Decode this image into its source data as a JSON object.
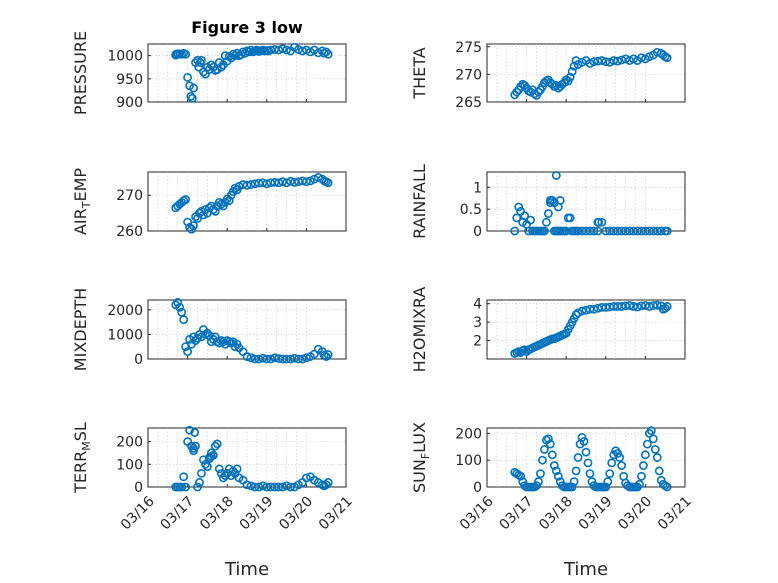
{
  "figure_title": "Figure 3 low",
  "chart_data": [
    {
      "type": "scatter",
      "title": "Figure 3 low",
      "ylabel": "PRESSURE",
      "xlabel": "",
      "xlim": [
        0,
        5
      ],
      "ylim": [
        900,
        1025
      ],
      "yticks": [
        900,
        950,
        1000
      ],
      "show_xticks": false,
      "x": [
        0.7,
        0.75,
        0.8,
        0.85,
        0.9,
        0.95,
        0.7,
        0.75,
        0.72,
        1.0,
        1.05,
        1.08,
        1.12,
        1.15,
        1.2,
        1.25,
        1.28,
        1.32,
        1.35,
        1.4,
        1.45,
        1.5,
        1.55,
        1.6,
        1.65,
        1.7,
        1.75,
        1.8,
        1.85,
        1.9,
        1.95,
        2.0,
        2.05,
        2.1,
        2.15,
        2.2,
        2.25,
        2.3,
        2.35,
        2.4,
        2.45,
        2.5,
        2.55,
        2.6,
        2.65,
        2.7,
        2.75,
        2.8,
        2.85,
        2.9,
        2.95,
        3.0,
        3.05,
        3.1,
        3.2,
        3.3,
        3.4,
        3.5,
        3.6,
        3.7,
        3.8,
        3.9,
        4.0,
        4.1,
        4.2,
        4.3,
        4.4,
        4.45,
        4.5,
        4.55
      ],
      "y": [
        1002,
        1003,
        1004,
        1003,
        1005,
        1003,
        1001,
        1004,
        1003,
        953,
        935,
        912,
        908,
        930,
        985,
        990,
        975,
        985,
        990,
        965,
        960,
        975,
        970,
        980,
        975,
        968,
        970,
        985,
        975,
        980,
        1000,
        988,
        998,
        995,
        1003,
        1000,
        1005,
        1000,
        1002,
        1008,
        1005,
        1010,
        1008,
        1012,
        1008,
        1010,
        1012,
        1009,
        1010,
        1012,
        1010,
        1011,
        1010,
        1012,
        1013,
        1012,
        1015,
        1012,
        1010,
        1018,
        1013,
        1010,
        1012,
        1008,
        1012,
        1006,
        1010,
        1005,
        1008,
        1003
      ]
    },
    {
      "type": "scatter",
      "title": "",
      "ylabel": "THETA",
      "xlabel": "",
      "xlim": [
        0,
        5
      ],
      "ylim": [
        265,
        275.5
      ],
      "yticks": [
        265,
        270,
        275
      ],
      "show_xticks": false,
      "x": [
        0.7,
        0.75,
        0.8,
        0.85,
        0.9,
        0.95,
        1.0,
        1.05,
        1.1,
        1.15,
        1.2,
        1.25,
        1.3,
        1.35,
        1.4,
        1.45,
        1.5,
        1.55,
        1.6,
        1.65,
        1.7,
        1.75,
        1.8,
        1.85,
        1.9,
        1.95,
        2.0,
        2.05,
        2.1,
        2.15,
        2.2,
        2.25,
        2.3,
        2.4,
        2.5,
        2.6,
        2.7,
        2.8,
        2.9,
        3.0,
        3.1,
        3.2,
        3.3,
        3.4,
        3.5,
        3.6,
        3.7,
        3.8,
        3.9,
        4.0,
        4.1,
        4.2,
        4.3,
        4.4,
        4.45,
        4.5,
        4.55
      ],
      "y": [
        266.3,
        266.8,
        267.2,
        267.8,
        268.2,
        268.0,
        267.5,
        267.0,
        266.8,
        267.2,
        266.5,
        266.2,
        266.8,
        267.2,
        267.8,
        268.5,
        268.8,
        269.0,
        268.5,
        268.2,
        267.8,
        268.0,
        267.5,
        267.8,
        268.2,
        268.5,
        269.0,
        268.8,
        269.5,
        270.5,
        271.5,
        272.5,
        271.8,
        272.2,
        272.5,
        272.0,
        272.3,
        272.4,
        272.5,
        272.3,
        272.2,
        272.5,
        272.4,
        272.6,
        272.8,
        272.5,
        272.8,
        272.5,
        273.0,
        272.8,
        273.2,
        273.5,
        274.0,
        273.8,
        273.5,
        273.2,
        273.0
      ]
    },
    {
      "type": "scatter",
      "title": "",
      "ylabel": "AIR_TEMP",
      "xlabel": "",
      "xlim": [
        0,
        5
      ],
      "ylim": [
        260,
        276.5
      ],
      "yticks": [
        260,
        270
      ],
      "show_xticks": false,
      "x": [
        0.7,
        0.75,
        0.8,
        0.85,
        0.9,
        0.95,
        1.0,
        1.05,
        1.1,
        1.15,
        1.2,
        1.25,
        1.3,
        1.35,
        1.4,
        1.45,
        1.5,
        1.55,
        1.6,
        1.65,
        1.7,
        1.75,
        1.8,
        1.85,
        1.9,
        1.95,
        2.0,
        2.05,
        2.1,
        2.15,
        2.2,
        2.25,
        2.3,
        2.4,
        2.5,
        2.6,
        2.7,
        2.8,
        2.9,
        3.0,
        3.1,
        3.2,
        3.3,
        3.4,
        3.5,
        3.6,
        3.7,
        3.8,
        3.9,
        4.0,
        4.1,
        4.2,
        4.3,
        4.4,
        4.45,
        4.5,
        4.55
      ],
      "y": [
        266.5,
        267.0,
        267.5,
        268.0,
        268.5,
        268.8,
        262.5,
        261.0,
        260.5,
        261.5,
        264.0,
        263.5,
        265.0,
        265.5,
        264.5,
        266.0,
        265.0,
        266.5,
        267.0,
        266.0,
        265.5,
        267.0,
        268.0,
        267.5,
        267.0,
        268.0,
        269.0,
        268.5,
        270.0,
        271.0,
        272.0,
        271.5,
        272.5,
        273.0,
        272.8,
        273.0,
        273.2,
        273.4,
        273.5,
        273.2,
        273.5,
        273.6,
        273.5,
        273.8,
        273.5,
        273.9,
        273.6,
        273.8,
        274.0,
        273.8,
        274.0,
        274.5,
        275.0,
        274.5,
        274.0,
        273.8,
        273.5
      ]
    },
    {
      "type": "scatter",
      "title": "",
      "ylabel": "RAINFALL",
      "xlabel": "",
      "xlim": [
        0,
        5
      ],
      "ylim": [
        0,
        1.35
      ],
      "yticks": [
        0,
        0.5,
        1
      ],
      "show_xticks": false,
      "x": [
        0.7,
        0.75,
        0.8,
        0.85,
        0.9,
        0.95,
        1.0,
        1.05,
        1.1,
        1.15,
        1.2,
        1.25,
        1.3,
        1.35,
        1.4,
        1.45,
        1.5,
        1.55,
        1.6,
        1.65,
        1.7,
        1.75,
        1.8,
        1.85,
        1.9,
        1.95,
        2.0,
        2.05,
        2.1,
        2.15,
        2.2,
        2.25,
        2.3,
        2.4,
        2.5,
        2.6,
        2.7,
        2.8,
        2.9,
        3.0,
        3.1,
        3.2,
        3.3,
        3.4,
        3.5,
        3.6,
        3.7,
        3.8,
        3.9,
        4.0,
        4.1,
        4.2,
        4.3,
        4.4,
        4.5,
        4.55,
        1.6,
        1.7,
        1.75,
        2.8,
        2.82,
        1.8,
        1.85
      ],
      "y": [
        0,
        0.3,
        0.55,
        0.45,
        0.2,
        0.35,
        0.15,
        0,
        0.25,
        0,
        0,
        0,
        0,
        0,
        0,
        0,
        0.2,
        0.4,
        0.7,
        0.7,
        0,
        0,
        0,
        0,
        0,
        0,
        0,
        0.3,
        0.3,
        0,
        0,
        0,
        0,
        0,
        0,
        0,
        0,
        0,
        0.2,
        0,
        0,
        0,
        0,
        0,
        0,
        0,
        0,
        0,
        0,
        0,
        0,
        0,
        0,
        0,
        0,
        0,
        0.65,
        0.65,
        1.27,
        0.2,
        0.2,
        0.55,
        0.7
      ]
    },
    {
      "type": "scatter",
      "title": "",
      "ylabel": "MIXDEPTH",
      "xlabel": "",
      "xlim": [
        0,
        5
      ],
      "ylim": [
        0,
        2400
      ],
      "yticks": [
        0,
        1000,
        2000
      ],
      "show_xticks": false,
      "x": [
        0.7,
        0.75,
        0.8,
        0.85,
        0.9,
        0.95,
        1.0,
        1.05,
        1.1,
        1.15,
        1.2,
        1.25,
        1.3,
        1.35,
        1.4,
        1.45,
        1.5,
        1.55,
        1.6,
        1.65,
        1.7,
        1.75,
        1.8,
        1.85,
        1.9,
        1.95,
        2.0,
        2.05,
        2.1,
        2.15,
        2.2,
        2.25,
        2.3,
        2.4,
        2.5,
        2.6,
        2.7,
        2.8,
        2.9,
        3.0,
        3.1,
        3.2,
        3.3,
        3.4,
        3.5,
        3.6,
        3.7,
        3.8,
        3.9,
        4.0,
        4.1,
        4.2,
        4.3,
        4.4,
        4.45,
        4.5,
        4.55
      ],
      "y": [
        2200,
        2300,
        2100,
        1900,
        1600,
        500,
        300,
        800,
        600,
        900,
        750,
        850,
        1000,
        900,
        1200,
        1000,
        1050,
        950,
        700,
        800,
        900,
        700,
        650,
        750,
        700,
        600,
        750,
        700,
        650,
        700,
        500,
        600,
        450,
        300,
        100,
        50,
        0,
        0,
        30,
        0,
        0,
        50,
        20,
        0,
        0,
        0,
        30,
        0,
        0,
        50,
        100,
        200,
        400,
        300,
        150,
        100,
        180
      ]
    },
    {
      "type": "scatter",
      "title": "",
      "ylabel": "H2OMIXRA",
      "xlabel": "",
      "xlim": [
        0,
        5
      ],
      "ylim": [
        1,
        4.2
      ],
      "yticks": [
        2,
        3,
        4
      ],
      "show_xticks": false,
      "x": [
        0.7,
        0.75,
        0.8,
        0.85,
        0.9,
        0.95,
        1.0,
        1.05,
        1.1,
        1.15,
        1.2,
        1.25,
        1.3,
        1.35,
        1.4,
        1.45,
        1.5,
        1.55,
        1.6,
        1.65,
        1.7,
        1.75,
        1.8,
        1.85,
        1.9,
        1.95,
        2.0,
        2.05,
        2.1,
        2.15,
        2.2,
        2.25,
        2.3,
        2.4,
        2.5,
        2.6,
        2.7,
        2.8,
        2.9,
        3.0,
        3.1,
        3.2,
        3.3,
        3.4,
        3.5,
        3.6,
        3.7,
        3.8,
        3.9,
        4.0,
        4.1,
        4.2,
        4.3,
        4.4,
        4.45,
        4.5,
        4.55
      ],
      "y": [
        1.3,
        1.35,
        1.4,
        1.35,
        1.45,
        1.5,
        1.4,
        1.5,
        1.55,
        1.6,
        1.65,
        1.7,
        1.75,
        1.8,
        1.85,
        1.9,
        1.95,
        2.0,
        2.05,
        2.1,
        2.1,
        2.15,
        2.2,
        2.25,
        2.3,
        2.35,
        2.4,
        2.6,
        2.8,
        3.0,
        3.2,
        3.4,
        3.5,
        3.6,
        3.65,
        3.7,
        3.7,
        3.75,
        3.8,
        3.8,
        3.82,
        3.85,
        3.85,
        3.85,
        3.88,
        3.9,
        3.85,
        3.82,
        3.88,
        3.9,
        3.85,
        3.9,
        3.92,
        3.88,
        3.7,
        3.75,
        3.85
      ]
    },
    {
      "type": "scatter",
      "title": "",
      "ylabel": "TERR_MSL",
      "xlabel": "Time",
      "xlim": [
        0,
        5
      ],
      "ylim": [
        0,
        260
      ],
      "yticks": [
        0,
        100,
        200
      ],
      "xticklabels": [
        "03/16",
        "03/17",
        "03/18",
        "03/19",
        "03/20",
        "03/21"
      ],
      "show_xticks": true,
      "x": [
        0.7,
        0.75,
        0.8,
        0.85,
        0.9,
        0.95,
        1.0,
        1.05,
        1.1,
        1.15,
        1.2,
        1.25,
        1.3,
        1.35,
        1.4,
        1.45,
        1.5,
        1.55,
        1.6,
        1.65,
        1.7,
        1.75,
        1.8,
        1.85,
        1.9,
        1.95,
        2.0,
        2.05,
        2.1,
        2.15,
        2.2,
        2.25,
        2.3,
        2.4,
        2.5,
        2.6,
        2.7,
        2.8,
        2.9,
        3.0,
        3.1,
        3.2,
        3.3,
        3.4,
        3.5,
        3.6,
        3.7,
        3.8,
        3.9,
        4.0,
        4.1,
        4.2,
        4.3,
        4.4,
        4.45,
        4.5,
        4.55,
        1.55,
        1.6,
        1.15,
        1.18
      ],
      "y": [
        0,
        0,
        0,
        0,
        45,
        0,
        200,
        250,
        180,
        170,
        180,
        0,
        20,
        60,
        120,
        100,
        90,
        130,
        150,
        140,
        180,
        190,
        80,
        60,
        40,
        50,
        60,
        80,
        50,
        70,
        60,
        80,
        40,
        30,
        10,
        5,
        0,
        0,
        5,
        0,
        0,
        0,
        0,
        0,
        5,
        0,
        0,
        10,
        20,
        40,
        45,
        30,
        20,
        10,
        5,
        10,
        20,
        125,
        135,
        160,
        240
      ]
    },
    {
      "type": "scatter",
      "title": "",
      "ylabel": "SUN_FLUX",
      "xlabel": "Time",
      "xlim": [
        0,
        5
      ],
      "ylim": [
        0,
        220
      ],
      "yticks": [
        0,
        100,
        200
      ],
      "xticklabels": [
        "03/16",
        "03/17",
        "03/18",
        "03/19",
        "03/20",
        "03/21"
      ],
      "show_xticks": true,
      "x": [
        0.7,
        0.75,
        0.8,
        0.85,
        0.9,
        0.95,
        1.0,
        1.05,
        1.1,
        1.15,
        1.2,
        1.25,
        1.3,
        1.35,
        1.4,
        1.45,
        1.5,
        1.55,
        1.6,
        1.65,
        1.7,
        1.75,
        1.8,
        1.85,
        1.9,
        1.95,
        2.0,
        2.05,
        2.1,
        2.15,
        2.2,
        2.25,
        2.3,
        2.35,
        2.4,
        2.45,
        2.5,
        2.55,
        2.6,
        2.65,
        2.7,
        2.75,
        2.8,
        2.85,
        2.9,
        2.95,
        3.0,
        3.05,
        3.1,
        3.15,
        3.2,
        3.25,
        3.3,
        3.35,
        3.4,
        3.45,
        3.5,
        3.55,
        3.6,
        3.65,
        3.7,
        3.75,
        3.8,
        3.85,
        3.9,
        3.95,
        4.0,
        4.05,
        4.1,
        4.15,
        4.2,
        4.25,
        4.3,
        4.35,
        4.4,
        4.45,
        4.5,
        4.55
      ],
      "y": [
        55,
        50,
        45,
        40,
        20,
        5,
        0,
        0,
        0,
        0,
        0,
        5,
        20,
        50,
        100,
        140,
        175,
        180,
        160,
        120,
        80,
        60,
        40,
        20,
        5,
        0,
        0,
        0,
        0,
        0,
        20,
        60,
        110,
        160,
        185,
        170,
        130,
        90,
        50,
        20,
        5,
        0,
        0,
        0,
        0,
        0,
        0,
        20,
        50,
        90,
        120,
        135,
        125,
        110,
        80,
        40,
        15,
        5,
        0,
        0,
        0,
        0,
        0,
        10,
        40,
        80,
        120,
        160,
        200,
        210,
        180,
        140,
        110,
        60,
        25,
        10,
        5,
        0
      ]
    }
  ]
}
